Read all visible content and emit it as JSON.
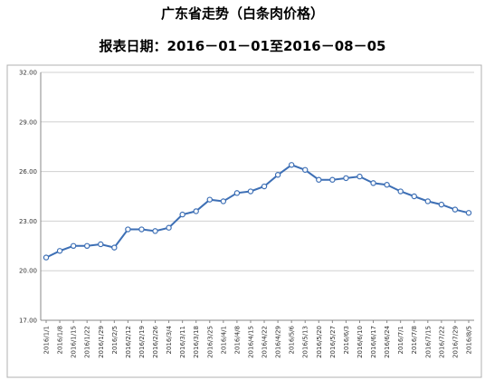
{
  "title": "广东省走势（白条肉价格）",
  "subtitle": "报表日期：2016－01－01至2016－08－05",
  "chart_data": {
    "type": "line",
    "title": "广东省走势（白条肉价格）",
    "subtitle": "报表日期：2016－01－01至2016－08－05",
    "xlabel": "",
    "ylabel": "",
    "ylim": [
      17,
      32
    ],
    "yticks": [
      "17.00",
      "20.00",
      "23.00",
      "26.00",
      "29.00",
      "32.00"
    ],
    "grid": true,
    "legend": "none",
    "line_color": "#3d6fb5",
    "categories": [
      "2016/1/1",
      "2016/1/8",
      "2016/1/15",
      "2016/1/22",
      "2016/1/29",
      "2016/2/5",
      "2016/2/12",
      "2016/2/19",
      "2016/2/26",
      "2016/3/4",
      "2016/3/11",
      "2016/3/18",
      "2016/3/25",
      "2016/4/1",
      "2016/4/8",
      "2016/4/15",
      "2016/4/22",
      "2016/4/29",
      "2016/5/6",
      "2016/5/13",
      "2016/5/20",
      "2016/5/27",
      "2016/6/3",
      "2016/6/10",
      "2016/6/17",
      "2016/6/24",
      "2016/7/1",
      "2016/7/8",
      "2016/7/15",
      "2016/7/22",
      "2016/7/29",
      "2016/8/5"
    ],
    "values": [
      20.8,
      21.2,
      21.5,
      21.5,
      21.6,
      21.4,
      22.5,
      22.5,
      22.4,
      22.6,
      23.4,
      23.6,
      24.3,
      24.2,
      24.7,
      24.8,
      25.1,
      25.8,
      26.4,
      26.1,
      25.5,
      25.5,
      25.6,
      25.7,
      25.3,
      25.2,
      24.8,
      24.5,
      24.2,
      24.0,
      23.7,
      23.5
    ]
  }
}
